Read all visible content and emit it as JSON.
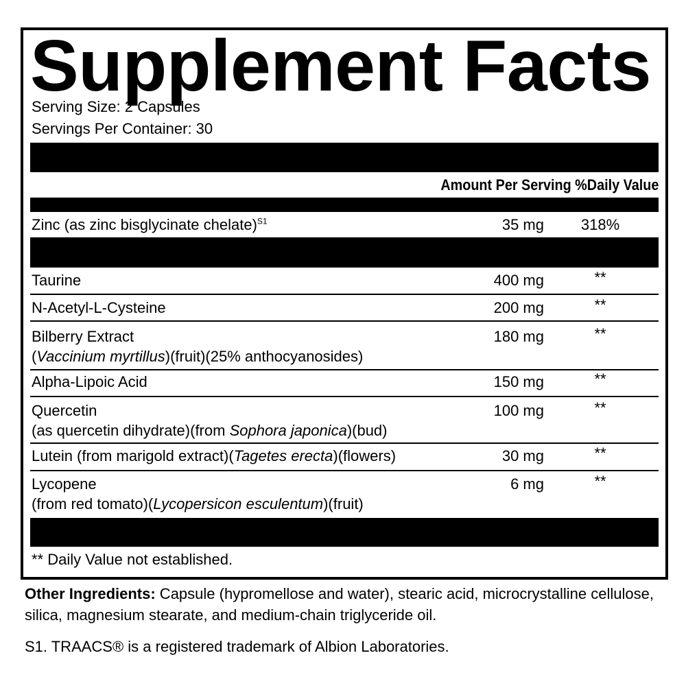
{
  "title": "Supplement Facts",
  "serving_size": "Serving Size: 2 Capsules",
  "servings_per_container": "Servings Per Container: 30",
  "header": {
    "amount": "Amount Per Serving",
    "dv": "%Daily Value"
  },
  "zinc": {
    "name": "Zinc (as zinc bisglycinate chelate)",
    "sup": "S1",
    "amount": "35 mg",
    "dv": "318%"
  },
  "rows": [
    {
      "name": "Taurine",
      "amount": "400 mg",
      "dv": "**"
    },
    {
      "name": "N-Acetyl-L-Cysteine",
      "amount": "200 mg",
      "dv": "**"
    },
    {
      "name": "Bilberry Extract",
      "sub_pre": "(",
      "sub_italic": "Vaccinium myrtillus",
      "sub_post": ")(fruit)(25% anthocyanosides)",
      "amount": "180 mg",
      "dv": "**"
    },
    {
      "name": "Alpha-Lipoic Acid",
      "amount": "150 mg",
      "dv": "**"
    },
    {
      "name": "Quercetin",
      "sub_pre": "(as quercetin dihydrate)(from ",
      "sub_italic": "Sophora japonica",
      "sub_post": ")(bud)",
      "amount": "100 mg",
      "dv": "**"
    },
    {
      "name": "Lutein (from marigold extract)(",
      "name_italic": "Tagetes erecta",
      "name_post": ")(flowers)",
      "amount": "30 mg",
      "dv": "**"
    },
    {
      "name": "Lycopene",
      "sub_pre": "(from red tomato)(",
      "sub_italic": "Lycopersicon esculentum",
      "sub_post": ")(fruit)",
      "amount": "6 mg",
      "dv": "**"
    }
  ],
  "footnote": "** Daily Value not established.",
  "other_label": "Other Ingredients:",
  "other_text": " Capsule (hypromellose and water), stearic acid, microcrystalline cellulose, silica, magnesium stearate, and medium-chain triglyceride oil.",
  "s1_note": "S1. TRAACS® is a registered trademark of Albion Laboratories."
}
